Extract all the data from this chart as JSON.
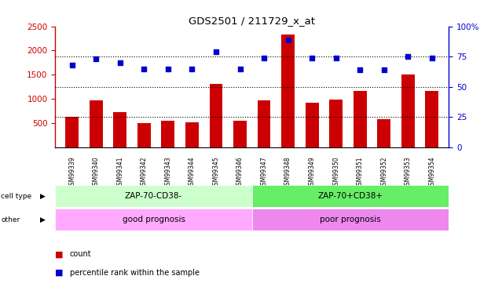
{
  "title": "GDS2501 / 211729_x_at",
  "samples": [
    "GSM99339",
    "GSM99340",
    "GSM99341",
    "GSM99342",
    "GSM99343",
    "GSM99344",
    "GSM99345",
    "GSM99346",
    "GSM99347",
    "GSM99348",
    "GSM99349",
    "GSM99350",
    "GSM99351",
    "GSM99352",
    "GSM99353",
    "GSM99354"
  ],
  "counts": [
    620,
    960,
    730,
    490,
    550,
    510,
    1310,
    550,
    970,
    2330,
    920,
    990,
    1170,
    570,
    1510,
    1160
  ],
  "percentile_pct": [
    68,
    73,
    70,
    65,
    65,
    65,
    79,
    65,
    74,
    89,
    74,
    74,
    64,
    64,
    75,
    74
  ],
  "bar_color": "#cc0000",
  "dot_color": "#0000cc",
  "left_ylim": [
    0,
    2500
  ],
  "left_yticks": [
    500,
    1000,
    1500,
    2000,
    2500
  ],
  "right_ylim": [
    0,
    100
  ],
  "right_yticks": [
    0,
    25,
    50,
    75,
    100
  ],
  "right_yticklabels": [
    "0",
    "25",
    "50",
    "75",
    "100%"
  ],
  "cell_type_left": "ZAP-70-CD38-",
  "cell_type_right": "ZAP-70+CD38+",
  "other_left": "good prognosis",
  "other_right": "poor prognosis",
  "cell_type_color_left": "#ccffcc",
  "cell_type_color_right": "#66ee66",
  "other_color_left": "#ffaaff",
  "other_color_right": "#ee88ee",
  "split_index": 8,
  "legend_count_label": "count",
  "legend_pct_label": "percentile rank within the sample",
  "bg_color": "#ffffff"
}
